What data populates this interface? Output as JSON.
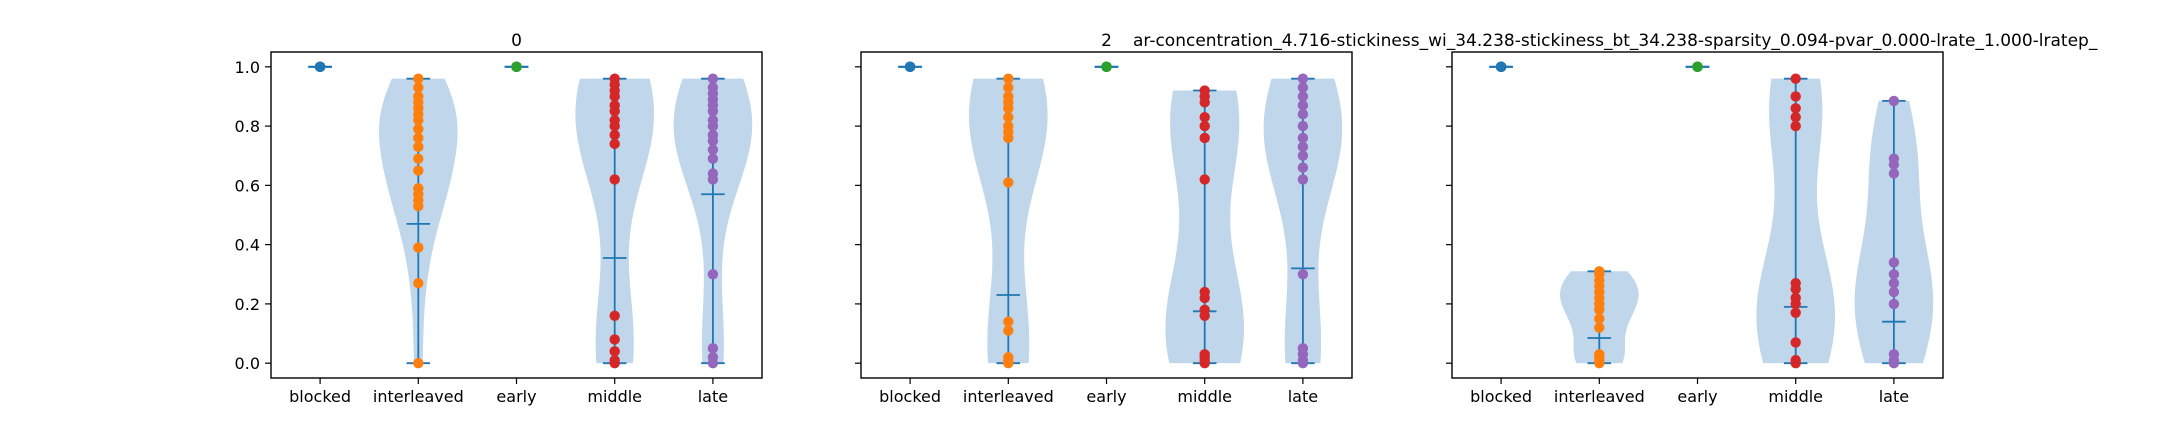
{
  "figure": {
    "suptitle": "ar-concentration_4.716-stickiness_wi_34.238-stickiness_bt_34.238-sparsity_0.094-pvar_0.000-lrate_1.000-lratep_"
  },
  "chart_data": [
    {
      "type": "violin",
      "title": "0",
      "categories": [
        "blocked",
        "interleaved",
        "early",
        "middle",
        "late"
      ],
      "ylim": [
        -0.05,
        1.05
      ],
      "yticks": [
        "0.0",
        "0.2",
        "0.4",
        "0.6",
        "0.8",
        "1.0"
      ],
      "grid": false,
      "colors": [
        "#1f77b4",
        "#ff7f0e",
        "#2ca02c",
        "#d62728",
        "#9467bd"
      ],
      "series": [
        {
          "category": "blocked",
          "min": 1.0,
          "max": 1.0,
          "mean": 1.0,
          "points": [
            1.0,
            1.0,
            1.0,
            1.0,
            1.0
          ]
        },
        {
          "category": "interleaved",
          "min": 0.0,
          "max": 0.96,
          "mean": 0.47,
          "points": [
            0.0,
            0.27,
            0.39,
            0.53,
            0.55,
            0.57,
            0.59,
            0.65,
            0.69,
            0.73,
            0.76,
            0.79,
            0.82,
            0.84,
            0.86,
            0.88,
            0.9,
            0.93,
            0.96
          ]
        },
        {
          "category": "early",
          "min": 1.0,
          "max": 1.0,
          "mean": 1.0,
          "points": [
            1.0,
            1.0,
            1.0,
            1.0,
            1.0
          ]
        },
        {
          "category": "middle",
          "min": 0.0,
          "max": 0.96,
          "mean": 0.355,
          "points": [
            0.0,
            0.01,
            0.04,
            0.08,
            0.16,
            0.62,
            0.74,
            0.77,
            0.8,
            0.82,
            0.85,
            0.87,
            0.9,
            0.92,
            0.94,
            0.96
          ]
        },
        {
          "category": "late",
          "min": 0.0,
          "max": 0.96,
          "mean": 0.57,
          "points": [
            0.0,
            0.02,
            0.05,
            0.3,
            0.62,
            0.64,
            0.69,
            0.72,
            0.75,
            0.77,
            0.8,
            0.82,
            0.85,
            0.87,
            0.89,
            0.91,
            0.93,
            0.96
          ]
        }
      ]
    },
    {
      "type": "violin",
      "title": "2",
      "categories": [
        "blocked",
        "interleaved",
        "early",
        "middle",
        "late"
      ],
      "ylim": [
        -0.05,
        1.05
      ],
      "yticks": [
        "0.0",
        "0.2",
        "0.4",
        "0.6",
        "0.8",
        "1.0"
      ],
      "grid": false,
      "colors": [
        "#1f77b4",
        "#ff7f0e",
        "#2ca02c",
        "#d62728",
        "#9467bd"
      ],
      "series": [
        {
          "category": "blocked",
          "min": 1.0,
          "max": 1.0,
          "mean": 1.0,
          "points": [
            1.0,
            1.0,
            1.0,
            1.0,
            1.0
          ]
        },
        {
          "category": "interleaved",
          "min": 0.0,
          "max": 0.96,
          "mean": 0.23,
          "points": [
            0.0,
            0.01,
            0.02,
            0.11,
            0.14,
            0.61,
            0.76,
            0.78,
            0.8,
            0.83,
            0.86,
            0.88,
            0.9,
            0.93,
            0.96
          ]
        },
        {
          "category": "early",
          "min": 1.0,
          "max": 1.0,
          "mean": 1.0,
          "points": [
            1.0,
            1.0,
            1.0,
            1.0,
            1.0
          ]
        },
        {
          "category": "middle",
          "min": 0.0,
          "max": 0.92,
          "mean": 0.175,
          "points": [
            0.0,
            0.01,
            0.02,
            0.03,
            0.16,
            0.18,
            0.22,
            0.24,
            0.62,
            0.76,
            0.8,
            0.83,
            0.88,
            0.9,
            0.92
          ]
        },
        {
          "category": "late",
          "min": 0.0,
          "max": 0.96,
          "mean": 0.32,
          "points": [
            0.0,
            0.01,
            0.03,
            0.05,
            0.3,
            0.62,
            0.66,
            0.7,
            0.73,
            0.76,
            0.8,
            0.84,
            0.87,
            0.9,
            0.93,
            0.96
          ]
        }
      ]
    },
    {
      "type": "violin",
      "title": "",
      "categories": [
        "blocked",
        "interleaved",
        "early",
        "middle",
        "late"
      ],
      "ylim": [
        -0.05,
        1.05
      ],
      "yticks": [
        "0.0",
        "0.2",
        "0.4",
        "0.6",
        "0.8",
        "1.0"
      ],
      "grid": false,
      "colors": [
        "#1f77b4",
        "#ff7f0e",
        "#2ca02c",
        "#d62728",
        "#9467bd"
      ],
      "series": [
        {
          "category": "blocked",
          "min": 1.0,
          "max": 1.0,
          "mean": 1.0,
          "points": [
            1.0,
            1.0,
            1.0,
            1.0,
            1.0
          ]
        },
        {
          "category": "interleaved",
          "min": 0.0,
          "max": 0.31,
          "mean": 0.085,
          "points": [
            0.0,
            0.01,
            0.02,
            0.03,
            0.12,
            0.15,
            0.18,
            0.2,
            0.22,
            0.24,
            0.26,
            0.28,
            0.3,
            0.31
          ]
        },
        {
          "category": "early",
          "min": 1.0,
          "max": 1.0,
          "mean": 1.0,
          "points": [
            1.0,
            1.0,
            1.0,
            1.0,
            1.0
          ]
        },
        {
          "category": "middle",
          "min": 0.0,
          "max": 0.96,
          "mean": 0.19,
          "points": [
            0.0,
            0.01,
            0.07,
            0.17,
            0.2,
            0.22,
            0.25,
            0.27,
            0.8,
            0.83,
            0.86,
            0.9,
            0.96
          ]
        },
        {
          "category": "late",
          "min": 0.0,
          "max": 0.885,
          "mean": 0.14,
          "points": [
            0.0,
            0.01,
            0.03,
            0.2,
            0.24,
            0.27,
            0.3,
            0.34,
            0.64,
            0.67,
            0.69,
            0.885
          ]
        }
      ]
    }
  ]
}
